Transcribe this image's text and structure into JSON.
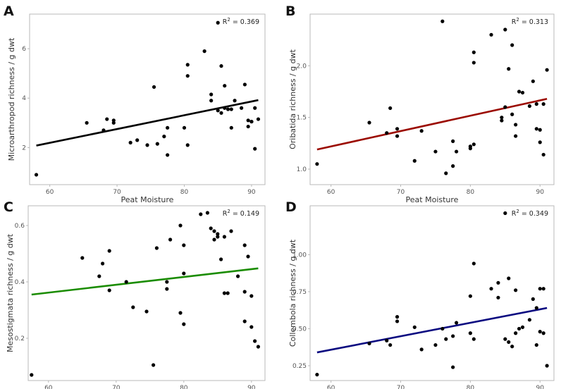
{
  "chart_data": [
    {
      "panel": "A",
      "type": "scatter",
      "xlabel": "Peat Moisture",
      "ylabel": "Microarthropod richness / g dwt",
      "annotation": {
        "prefix": "R",
        "sup": "2",
        "suffix": " = 0.369"
      },
      "xlim": [
        57,
        92
      ],
      "ylim": [
        0.5,
        7.4
      ],
      "xticks": [
        60,
        70,
        80,
        90
      ],
      "yticks": [
        2,
        4,
        6
      ],
      "fit": {
        "color": "#000000",
        "x": [
          58,
          91
        ],
        "y": [
          2.08,
          3.92
        ]
      },
      "points": [
        [
          58,
          0.9
        ],
        [
          65.5,
          3.0
        ],
        [
          68,
          2.7
        ],
        [
          68.5,
          3.15
        ],
        [
          69.5,
          3.0
        ],
        [
          69.5,
          3.1
        ],
        [
          72,
          2.2
        ],
        [
          73,
          2.3
        ],
        [
          74.5,
          2.1
        ],
        [
          75.5,
          4.45
        ],
        [
          76,
          2.15
        ],
        [
          77,
          2.45
        ],
        [
          77.5,
          1.7
        ],
        [
          77.5,
          2.8
        ],
        [
          80,
          2.8
        ],
        [
          80.5,
          4.9
        ],
        [
          80.5,
          5.35
        ],
        [
          80.5,
          2.1
        ],
        [
          83,
          5.9
        ],
        [
          84,
          4.15
        ],
        [
          84,
          3.9
        ],
        [
          85,
          7.05
        ],
        [
          85,
          3.5
        ],
        [
          85.5,
          5.3
        ],
        [
          85.5,
          3.4
        ],
        [
          86,
          4.5
        ],
        [
          86,
          3.6
        ],
        [
          86.5,
          3.55
        ],
        [
          87,
          2.8
        ],
        [
          87,
          3.55
        ],
        [
          87.5,
          3.9
        ],
        [
          88.5,
          3.6
        ],
        [
          89,
          4.55
        ],
        [
          89.5,
          2.85
        ],
        [
          89.5,
          3.1
        ],
        [
          90,
          3.05
        ],
        [
          90,
          3.05
        ],
        [
          90.5,
          3.6
        ],
        [
          90.5,
          1.95
        ],
        [
          91,
          3.15
        ]
      ]
    },
    {
      "panel": "B",
      "type": "scatter",
      "xlabel": "Peat Moisture",
      "ylabel": "Oribatida richness / g dwt",
      "annotation": {
        "prefix": "R",
        "sup": "2",
        "suffix": " = 0.313"
      },
      "xlim": [
        57,
        92
      ],
      "ylim": [
        0.85,
        2.5
      ],
      "xticks": [
        60,
        70,
        80,
        90
      ],
      "yticks": [
        1.0,
        1.5,
        2.0
      ],
      "ytick_labels": [
        "1.0",
        "1.5",
        "2.0"
      ],
      "fit": {
        "color": "#9b0a00",
        "x": [
          58,
          91
        ],
        "y": [
          1.19,
          1.68
        ]
      },
      "points": [
        [
          58,
          1.05
        ],
        [
          65.5,
          1.45
        ],
        [
          68,
          1.35
        ],
        [
          68.5,
          1.59
        ],
        [
          69.5,
          1.39
        ],
        [
          69.5,
          1.32
        ],
        [
          72,
          1.08
        ],
        [
          73,
          1.37
        ],
        [
          75,
          1.17
        ],
        [
          76,
          2.43
        ],
        [
          76.5,
          0.96
        ],
        [
          77.5,
          1.03
        ],
        [
          77.5,
          1.27
        ],
        [
          78,
          1.17
        ],
        [
          80,
          1.2
        ],
        [
          80,
          1.22
        ],
        [
          80.5,
          1.24
        ],
        [
          80.5,
          2.13
        ],
        [
          80.5,
          2.03
        ],
        [
          83,
          2.3
        ],
        [
          84.5,
          1.47
        ],
        [
          84.5,
          1.5
        ],
        [
          85,
          2.35
        ],
        [
          85,
          1.6
        ],
        [
          85.5,
          1.97
        ],
        [
          86,
          1.53
        ],
        [
          86,
          2.2
        ],
        [
          86.5,
          1.43
        ],
        [
          86.5,
          1.32
        ],
        [
          87,
          1.75
        ],
        [
          87.5,
          1.74
        ],
        [
          88.5,
          1.61
        ],
        [
          89,
          1.85
        ],
        [
          89.5,
          1.39
        ],
        [
          89.5,
          1.63
        ],
        [
          90,
          1.38
        ],
        [
          90,
          1.26
        ],
        [
          90.5,
          1.14
        ],
        [
          90.5,
          1.63
        ],
        [
          91,
          1.96
        ]
      ]
    },
    {
      "panel": "C",
      "type": "scatter",
      "xlabel": "Peat Moisture",
      "ylabel": "Mesostigmata richness / g dwt",
      "annotation": {
        "prefix": "R",
        "sup": "2",
        "suffix": " = 0.149"
      },
      "xlim": [
        57,
        92
      ],
      "ylim": [
        0.05,
        0.67
      ],
      "xticks": [
        60,
        70,
        80,
        90
      ],
      "yticks": [
        0.2,
        0.4,
        0.6
      ],
      "ytick_labels": [
        "0.2",
        "0.4",
        "0.6"
      ],
      "fit": {
        "color": "#1a8c00",
        "x": [
          57.5,
          91
        ],
        "y": [
          0.355,
          0.448
        ]
      },
      "points": [
        [
          57.5,
          0.07
        ],
        [
          65,
          0.485
        ],
        [
          67.5,
          0.42
        ],
        [
          68,
          0.465
        ],
        [
          69,
          0.51
        ],
        [
          69,
          0.37
        ],
        [
          71.5,
          0.4
        ],
        [
          72.5,
          0.31
        ],
        [
          74.5,
          0.295
        ],
        [
          75.5,
          0.105
        ],
        [
          76,
          0.52
        ],
        [
          77.5,
          0.375
        ],
        [
          77.5,
          0.4
        ],
        [
          78,
          0.55
        ],
        [
          79.5,
          0.29
        ],
        [
          79.5,
          0.6
        ],
        [
          80,
          0.25
        ],
        [
          80,
          0.43
        ],
        [
          80,
          0.53
        ],
        [
          82.5,
          0.64
        ],
        [
          83.5,
          0.645
        ],
        [
          84,
          0.59
        ],
        [
          84.5,
          0.58
        ],
        [
          84.5,
          0.55
        ],
        [
          85,
          0.56
        ],
        [
          85,
          0.57
        ],
        [
          85.5,
          0.48
        ],
        [
          86,
          0.56
        ],
        [
          86,
          0.36
        ],
        [
          86.5,
          0.36
        ],
        [
          87,
          0.58
        ],
        [
          88,
          0.42
        ],
        [
          89,
          0.53
        ],
        [
          89,
          0.365
        ],
        [
          89,
          0.26
        ],
        [
          89.5,
          0.49
        ],
        [
          90,
          0.35
        ],
        [
          90,
          0.24
        ],
        [
          90.5,
          0.19
        ],
        [
          91,
          0.17
        ]
      ]
    },
    {
      "panel": "D",
      "type": "scatter",
      "xlabel": "Peat Moisture",
      "ylabel": "Collembola richness / g dwt",
      "annotation": {
        "prefix": "R",
        "sup": "2",
        "suffix": " = 0.349"
      },
      "xlim": [
        57,
        92
      ],
      "ylim": [
        0.15,
        1.33
      ],
      "xticks": [
        60,
        70,
        80,
        90
      ],
      "yticks": [
        0.25,
        0.5,
        0.75,
        1.0
      ],
      "ytick_labels": [
        "0.25",
        "0.50",
        "0.75",
        "1.00"
      ],
      "fit": {
        "color": "#0a0a80",
        "x": [
          58,
          91
        ],
        "y": [
          0.34,
          0.64
        ]
      },
      "points": [
        [
          58,
          0.19
        ],
        [
          65.5,
          0.4
        ],
        [
          68,
          0.42
        ],
        [
          68.5,
          0.39
        ],
        [
          69.5,
          0.58
        ],
        [
          69.5,
          0.55
        ],
        [
          72,
          0.51
        ],
        [
          73,
          0.36
        ],
        [
          75,
          0.39
        ],
        [
          76,
          0.5
        ],
        [
          76.5,
          0.43
        ],
        [
          77.5,
          0.24
        ],
        [
          77.5,
          0.45
        ],
        [
          78,
          0.54
        ],
        [
          80,
          0.47
        ],
        [
          80,
          0.72
        ],
        [
          80.5,
          0.43
        ],
        [
          80.5,
          0.94
        ],
        [
          83,
          0.77
        ],
        [
          84,
          0.81
        ],
        [
          84,
          0.71
        ],
        [
          85,
          1.28
        ],
        [
          85,
          0.43
        ],
        [
          85.5,
          0.84
        ],
        [
          85.5,
          0.41
        ],
        [
          86,
          0.38
        ],
        [
          86.5,
          0.76
        ],
        [
          86.5,
          0.47
        ],
        [
          87,
          0.5
        ],
        [
          87.5,
          0.51
        ],
        [
          88.5,
          0.56
        ],
        [
          89,
          0.7
        ],
        [
          89.5,
          0.64
        ],
        [
          89.5,
          0.39
        ],
        [
          90,
          0.48
        ],
        [
          90,
          0.77
        ],
        [
          90.5,
          0.47
        ],
        [
          90.5,
          0.77
        ],
        [
          91,
          0.25
        ]
      ]
    }
  ]
}
